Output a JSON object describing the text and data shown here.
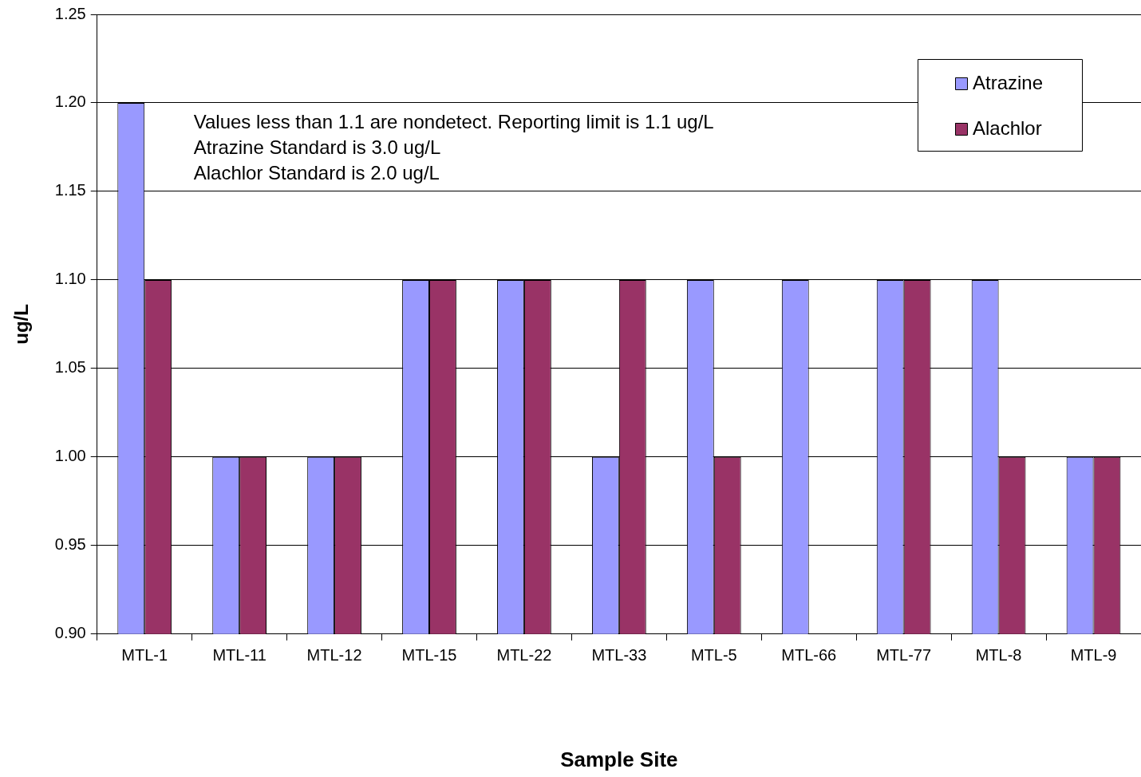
{
  "chart_data": {
    "type": "bar",
    "xlabel": "Sample Site",
    "ylabel": "ug/L",
    "categories": [
      "MTL-1",
      "MTL-11",
      "MTL-12",
      "MTL-15",
      "MTL-22",
      "MTL-33",
      "MTL-5",
      "MTL-66",
      "MTL-77",
      "MTL-8",
      "MTL-9"
    ],
    "series": [
      {
        "name": "Atrazine",
        "color": "#9999ff",
        "values": [
          1.2,
          1.0,
          1.0,
          1.1,
          1.1,
          1.0,
          1.1,
          1.1,
          1.1,
          1.1,
          1.0
        ]
      },
      {
        "name": "Alachlor",
        "color": "#993366",
        "values": [
          1.1,
          1.0,
          1.0,
          1.1,
          1.1,
          1.1,
          1.0,
          null,
          1.1,
          1.0,
          1.0
        ]
      }
    ],
    "ylim": [
      0.9,
      1.25
    ],
    "yticks": [
      {
        "value": 0.9,
        "label": "0.90"
      },
      {
        "value": 0.95,
        "label": "0.95"
      },
      {
        "value": 1.0,
        "label": "1.00"
      },
      {
        "value": 1.05,
        "label": "1.05"
      },
      {
        "value": 1.1,
        "label": "1.10"
      },
      {
        "value": 1.15,
        "label": "1.15"
      },
      {
        "value": 1.2,
        "label": "1.20"
      },
      {
        "value": 1.25,
        "label": "1.25"
      }
    ],
    "grid": "y",
    "legend": "top right",
    "annotations": [
      "Values less than 1.1 are nondetect. Reporting limit is 1.1 ug/L",
      "Atrazine Standard is 3.0 ug/L",
      "Alachlor Standard is 2.0 ug/L"
    ]
  }
}
